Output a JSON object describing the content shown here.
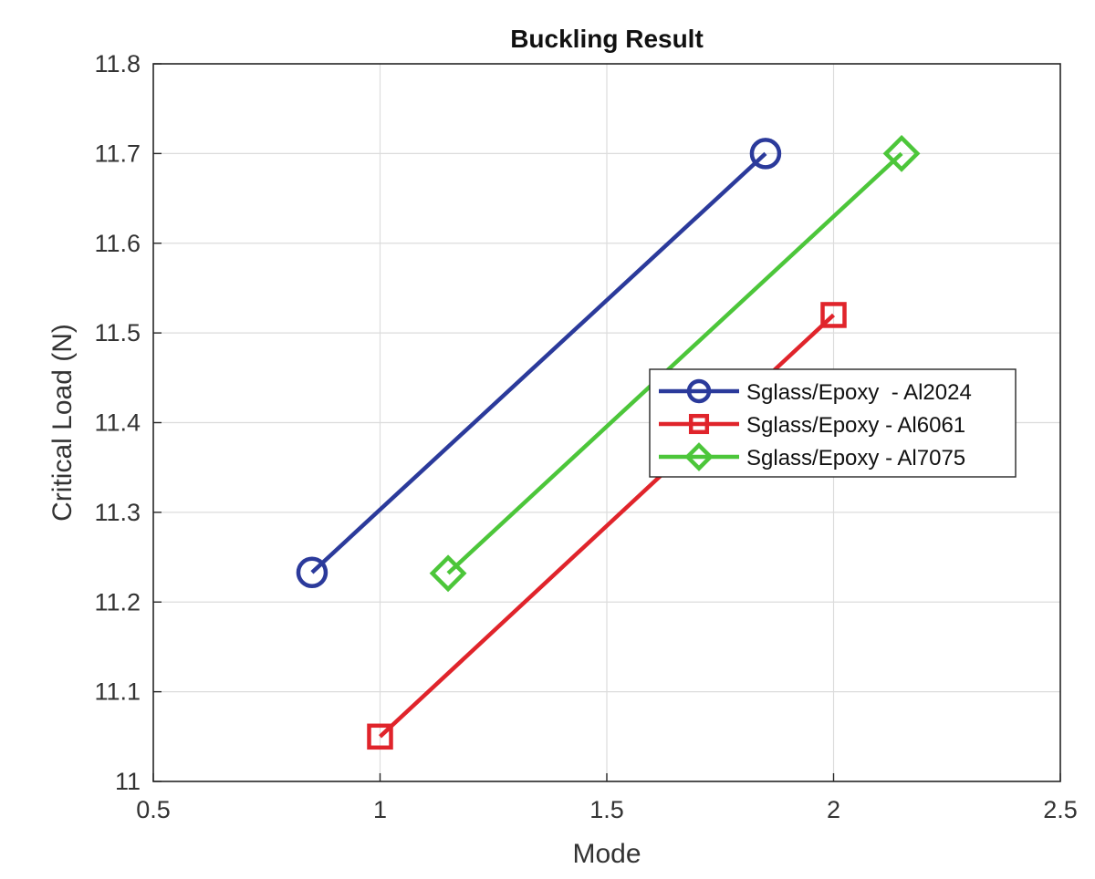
{
  "chart_data": {
    "type": "line",
    "title": "Buckling Result",
    "xlabel": "Mode",
    "ylabel": "Critical Load (N)",
    "xlim": [
      0.5,
      2.5
    ],
    "ylim": [
      11,
      11.8
    ],
    "xticks": [
      0.5,
      1,
      1.5,
      2,
      2.5
    ],
    "xtick_labels": [
      "0.5",
      "1",
      "1.5",
      "2",
      "2.5"
    ],
    "yticks": [
      11,
      11.1,
      11.2,
      11.3,
      11.4,
      11.5,
      11.6,
      11.7,
      11.8
    ],
    "ytick_labels": [
      "11",
      "11.1",
      "11.2",
      "11.3",
      "11.4",
      "11.5",
      "11.6",
      "11.7",
      "11.8"
    ],
    "grid": true,
    "legend_position": "center-right",
    "series": [
      {
        "name": "Sglass/Epoxy  - Al2024",
        "color": "#2b3a9b",
        "marker": "circle",
        "x": [
          0.85,
          1.85
        ],
        "y": [
          11.233,
          11.7
        ]
      },
      {
        "name": "Sglass/Epoxy - Al6061",
        "color": "#e0242b",
        "marker": "square",
        "x": [
          1.0,
          2.0
        ],
        "y": [
          11.05,
          11.52
        ]
      },
      {
        "name": "Sglass/Epoxy - Al7075",
        "color": "#4cc63a",
        "marker": "diamond",
        "x": [
          1.15,
          2.15
        ],
        "y": [
          11.232,
          11.7
        ]
      }
    ]
  }
}
